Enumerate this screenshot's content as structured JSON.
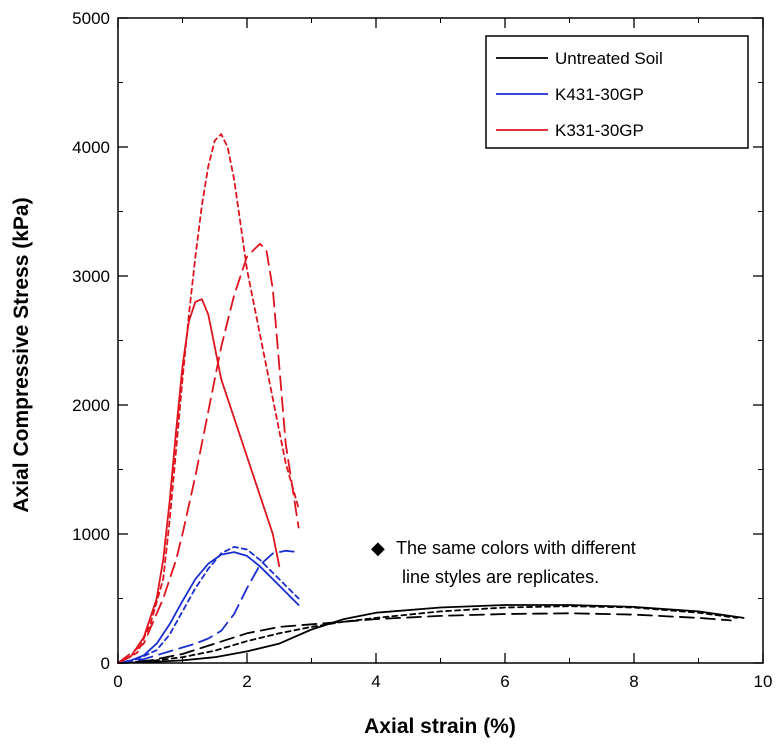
{
  "chart_data": {
    "type": "line",
    "xlabel": "Axial strain (%)",
    "ylabel": "Axial Compressive Stress (kPa)",
    "xlim": [
      0,
      10
    ],
    "ylim": [
      0,
      5000
    ],
    "xticks": [
      0,
      2,
      4,
      6,
      8,
      10
    ],
    "yticks": [
      0,
      1000,
      2000,
      3000,
      4000,
      5000
    ],
    "grid": false,
    "legend_position": "top-right",
    "legend": [
      {
        "label": "Untreated Soil",
        "color": "#000000"
      },
      {
        "label": "K431-30GP",
        "color": "#1a2fd0"
      },
      {
        "label": "K331-30GP",
        "color": "#e0141e"
      }
    ],
    "annotation": {
      "marker": "◆",
      "lines": [
        "The same colors with different",
        "line styles are replicates."
      ]
    },
    "series": [
      {
        "group": "Untreated Soil",
        "color": "#000000",
        "style": "solid",
        "x": [
          0,
          0.5,
          1.0,
          1.5,
          2.0,
          2.5,
          3.0,
          3.5,
          4.0,
          5.0,
          6.0,
          7.0,
          8.0,
          9.0,
          9.7
        ],
        "y": [
          0,
          8,
          20,
          45,
          90,
          150,
          260,
          340,
          390,
          430,
          450,
          450,
          435,
          400,
          350
        ]
      },
      {
        "group": "Untreated Soil",
        "color": "#000000",
        "style": "short-dash",
        "x": [
          0,
          0.5,
          1.0,
          1.5,
          2.0,
          2.5,
          3.0,
          3.5,
          4.0,
          5.0,
          6.0,
          7.0,
          8.0,
          9.0,
          9.6
        ],
        "y": [
          0,
          15,
          45,
          95,
          170,
          230,
          280,
          320,
          350,
          400,
          430,
          440,
          430,
          390,
          350
        ]
      },
      {
        "group": "Untreated Soil",
        "color": "#000000",
        "style": "long-dash",
        "x": [
          0,
          0.5,
          1.0,
          1.5,
          2.0,
          2.5,
          3.0,
          3.5,
          4.0,
          5.0,
          6.0,
          7.0,
          8.0,
          9.0,
          9.5
        ],
        "y": [
          0,
          20,
          70,
          150,
          230,
          280,
          300,
          320,
          340,
          365,
          380,
          385,
          375,
          350,
          330
        ]
      },
      {
        "group": "K431-30GP",
        "color": "#1a2fd0",
        "style": "solid",
        "x": [
          0,
          0.2,
          0.4,
          0.6,
          0.8,
          1.0,
          1.2,
          1.4,
          1.6,
          1.8,
          2.0,
          2.2,
          2.4,
          2.6,
          2.8
        ],
        "y": [
          0,
          20,
          60,
          150,
          300,
          480,
          650,
          770,
          840,
          860,
          830,
          750,
          650,
          550,
          450
        ]
      },
      {
        "group": "K431-30GP",
        "color": "#1a2fd0",
        "style": "short-dash",
        "x": [
          0,
          0.3,
          0.6,
          0.8,
          1.0,
          1.2,
          1.4,
          1.6,
          1.8,
          2.0,
          2.2,
          2.4,
          2.6,
          2.8
        ],
        "y": [
          0,
          30,
          100,
          220,
          400,
          580,
          730,
          850,
          900,
          880,
          800,
          700,
          600,
          500
        ]
      },
      {
        "group": "K431-30GP",
        "color": "#1a2fd0",
        "style": "long-dash",
        "x": [
          0,
          0.4,
          0.8,
          1.0,
          1.2,
          1.4,
          1.6,
          1.8,
          2.0,
          2.2,
          2.4,
          2.6,
          2.8
        ],
        "y": [
          0,
          30,
          90,
          120,
          150,
          190,
          250,
          380,
          580,
          760,
          850,
          870,
          860
        ]
      },
      {
        "group": "K331-30GP",
        "color": "#e0141e",
        "style": "solid",
        "x": [
          0,
          0.2,
          0.4,
          0.6,
          0.7,
          0.8,
          0.9,
          1.0,
          1.1,
          1.2,
          1.3,
          1.4,
          1.5,
          1.6,
          1.8,
          2.0,
          2.2,
          2.4,
          2.5
        ],
        "y": [
          0,
          50,
          200,
          500,
          800,
          1250,
          1800,
          2300,
          2650,
          2800,
          2820,
          2700,
          2450,
          2200,
          1900,
          1600,
          1300,
          1000,
          750
        ]
      },
      {
        "group": "K331-30GP",
        "color": "#e0141e",
        "style": "short-dash",
        "x": [
          0,
          0.3,
          0.5,
          0.7,
          0.8,
          0.9,
          1.0,
          1.1,
          1.2,
          1.3,
          1.4,
          1.5,
          1.6,
          1.7,
          1.8,
          1.9,
          2.0,
          2.2,
          2.4,
          2.6,
          2.8
        ],
        "y": [
          0,
          80,
          300,
          650,
          1100,
          1650,
          2200,
          2700,
          3150,
          3550,
          3850,
          4050,
          4100,
          4000,
          3750,
          3400,
          3050,
          2550,
          2050,
          1550,
          1200
        ]
      },
      {
        "group": "K331-30GP",
        "color": "#e0141e",
        "style": "long-dash",
        "x": [
          0,
          0.4,
          0.7,
          0.9,
          1.0,
          1.2,
          1.4,
          1.6,
          1.8,
          2.0,
          2.2,
          2.3,
          2.4,
          2.5,
          2.6,
          2.8
        ],
        "y": [
          0,
          150,
          500,
          800,
          1000,
          1450,
          1950,
          2450,
          2850,
          3150,
          3250,
          3200,
          2900,
          2300,
          1700,
          1050
        ]
      }
    ]
  }
}
